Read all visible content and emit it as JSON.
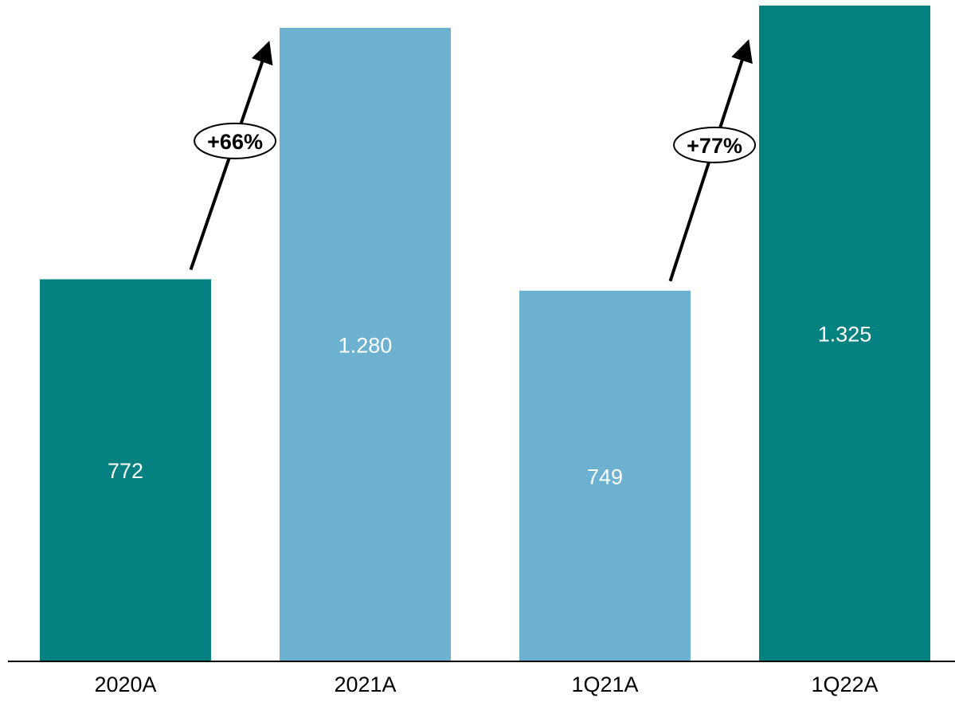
{
  "chart_data": {
    "type": "bar",
    "categories": [
      "2020A",
      "2021A",
      "1Q21A",
      "1Q22A"
    ],
    "values": [
      772,
      1280,
      749,
      1325
    ],
    "value_labels": [
      "772",
      "1.280",
      "749",
      "1.325"
    ],
    "bar_colors": [
      "#058182",
      "#6cb1d0",
      "#6cb1d0",
      "#058182"
    ],
    "title": "",
    "xlabel": "",
    "ylabel": "",
    "ylim": [
      0,
      1325
    ],
    "grid": false,
    "legend": "none",
    "annotations": [
      {
        "text": "+66%",
        "from": "2020A",
        "to": "2021A"
      },
      {
        "text": "+77%",
        "from": "1Q21A",
        "to": "1Q22A"
      }
    ]
  },
  "colors": {
    "teal": "#058182",
    "light_blue": "#6cb1d0",
    "label_text": "#ffffff",
    "axis": "#000000"
  }
}
